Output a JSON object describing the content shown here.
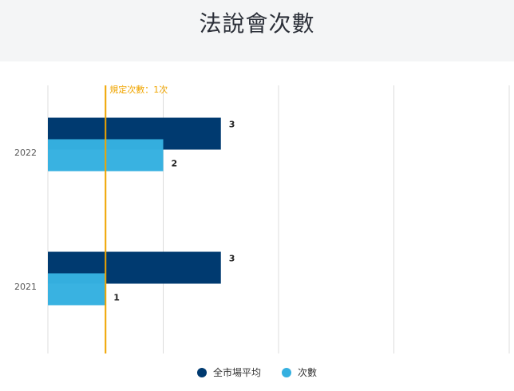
{
  "title": "法說會次數",
  "chart_data": {
    "type": "bar",
    "orientation": "horizontal",
    "categories": [
      "2022",
      "2021"
    ],
    "series": [
      {
        "name": "全市場平均",
        "values": [
          3,
          3
        ],
        "color": "#003a70"
      },
      {
        "name": "次數",
        "values": [
          2,
          1
        ],
        "color": "#35b0e0"
      }
    ],
    "xlim": [
      0,
      8
    ],
    "grid": true,
    "reference_line": {
      "label": "規定次數：1次",
      "value": 1,
      "color": "#f0a500"
    },
    "legend_position": "bottom"
  }
}
